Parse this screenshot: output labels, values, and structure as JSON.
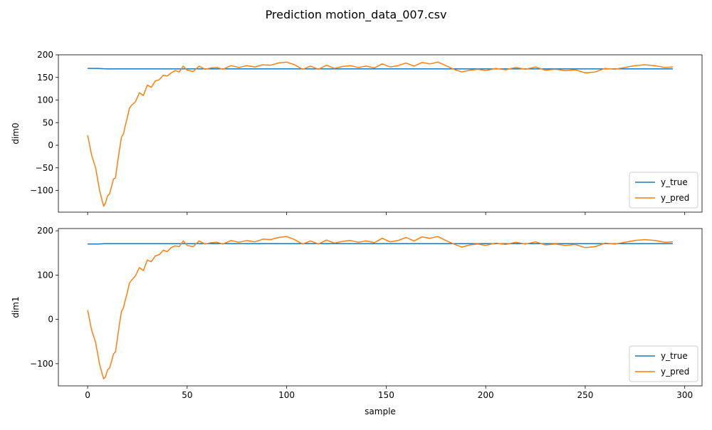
{
  "figure": {
    "title": "Prediction motion_data_007.csv",
    "colors": {
      "y_true": "#1f77b4",
      "y_pred": "#ff7f0e"
    }
  },
  "chart_data": [
    {
      "type": "line",
      "title": "",
      "xlabel": "",
      "ylabel": "dim0",
      "xlim": [
        -14.7,
        308.7
      ],
      "ylim": [
        -148,
        200
      ],
      "xticks": [
        0,
        50,
        100,
        150,
        200,
        250,
        300
      ],
      "yticks": [
        -100,
        -50,
        0,
        50,
        100,
        150,
        200
      ],
      "xtick_labels_visible": false,
      "legend": {
        "position": "lower-right",
        "entries": [
          "y_true",
          "y_pred"
        ]
      },
      "series": [
        {
          "name": "y_true",
          "color": "#1f77b4",
          "x": [
            0,
            5,
            9,
            15,
            30,
            60,
            100,
            150,
            200,
            250,
            294
          ],
          "y": [
            170,
            170,
            169,
            169,
            169,
            169,
            169,
            169,
            169,
            169,
            169
          ]
        },
        {
          "name": "y_pred",
          "color": "#ff7f0e",
          "x": [
            0,
            2,
            4,
            6,
            8,
            9,
            10,
            11,
            12,
            13,
            14,
            15,
            16,
            17,
            18,
            19,
            20,
            21,
            22,
            24,
            26,
            28,
            30,
            32,
            34,
            36,
            38,
            40,
            42,
            44,
            46,
            48,
            50,
            53,
            56,
            59,
            62,
            65,
            68,
            72,
            76,
            80,
            84,
            88,
            92,
            96,
            100,
            104,
            108,
            112,
            116,
            120,
            124,
            128,
            132,
            136,
            140,
            144,
            148,
            152,
            156,
            160,
            164,
            168,
            172,
            176,
            180,
            184,
            188,
            192,
            196,
            200,
            205,
            210,
            215,
            220,
            225,
            230,
            235,
            240,
            245,
            250,
            255,
            260,
            265,
            270,
            275,
            280,
            285,
            290,
            294
          ],
          "y": [
            22,
            -22,
            -50,
            -100,
            -135,
            -128,
            -112,
            -108,
            -92,
            -75,
            -72,
            -40,
            -10,
            18,
            25,
            45,
            62,
            82,
            88,
            96,
            116,
            110,
            133,
            128,
            142,
            145,
            155,
            153,
            160,
            165,
            162,
            175,
            166,
            163,
            175,
            168,
            171,
            172,
            168,
            176,
            172,
            176,
            173,
            178,
            177,
            182,
            184,
            178,
            168,
            175,
            168,
            177,
            170,
            174,
            176,
            172,
            175,
            171,
            180,
            173,
            176,
            182,
            175,
            183,
            180,
            184,
            176,
            168,
            162,
            166,
            168,
            165,
            170,
            167,
            172,
            168,
            173,
            166,
            168,
            165,
            167,
            160,
            162,
            170,
            168,
            172,
            176,
            178,
            176,
            172,
            173
          ]
        }
      ]
    },
    {
      "type": "line",
      "title": "",
      "xlabel": "sample",
      "ylabel": "dim1",
      "xlim": [
        -14.7,
        308.7
      ],
      "ylim": [
        -150,
        205
      ],
      "xticks": [
        0,
        50,
        100,
        150,
        200,
        250,
        300
      ],
      "yticks": [
        -100,
        0,
        100,
        200
      ],
      "xtick_labels_visible": true,
      "legend": {
        "position": "lower-right",
        "entries": [
          "y_true",
          "y_pred"
        ]
      },
      "series": [
        {
          "name": "y_true",
          "color": "#1f77b4",
          "x": [
            0,
            5,
            9,
            15,
            30,
            60,
            100,
            150,
            200,
            250,
            294
          ],
          "y": [
            170,
            170,
            171,
            171,
            171,
            171,
            171,
            171,
            171,
            171,
            171
          ]
        },
        {
          "name": "y_pred",
          "color": "#ff7f0e",
          "x": [
            0,
            2,
            4,
            6,
            8,
            9,
            10,
            11,
            12,
            13,
            14,
            15,
            16,
            17,
            18,
            19,
            20,
            21,
            22,
            24,
            26,
            28,
            30,
            32,
            34,
            36,
            38,
            40,
            42,
            44,
            46,
            48,
            50,
            53,
            56,
            59,
            62,
            65,
            68,
            72,
            76,
            80,
            84,
            88,
            92,
            96,
            100,
            104,
            108,
            112,
            116,
            120,
            124,
            128,
            132,
            136,
            140,
            144,
            148,
            152,
            156,
            160,
            164,
            168,
            172,
            176,
            180,
            184,
            188,
            192,
            196,
            200,
            205,
            210,
            215,
            220,
            225,
            230,
            235,
            240,
            245,
            250,
            255,
            260,
            265,
            270,
            275,
            280,
            285,
            290,
            294
          ],
          "y": [
            21,
            -24,
            -52,
            -102,
            -134,
            -130,
            -114,
            -110,
            -95,
            -78,
            -73,
            -42,
            -10,
            18,
            26,
            45,
            62,
            82,
            88,
            98,
            117,
            110,
            134,
            130,
            143,
            146,
            156,
            153,
            162,
            166,
            164,
            177,
            167,
            164,
            177,
            170,
            173,
            174,
            170,
            178,
            174,
            178,
            175,
            181,
            180,
            185,
            187,
            180,
            170,
            177,
            170,
            179,
            172,
            176,
            178,
            174,
            177,
            173,
            183,
            175,
            178,
            185,
            177,
            186,
            183,
            187,
            178,
            170,
            163,
            168,
            170,
            167,
            172,
            169,
            174,
            170,
            175,
            168,
            170,
            167,
            169,
            162,
            164,
            172,
            170,
            174,
            178,
            180,
            178,
            174,
            175
          ]
        }
      ]
    }
  ]
}
